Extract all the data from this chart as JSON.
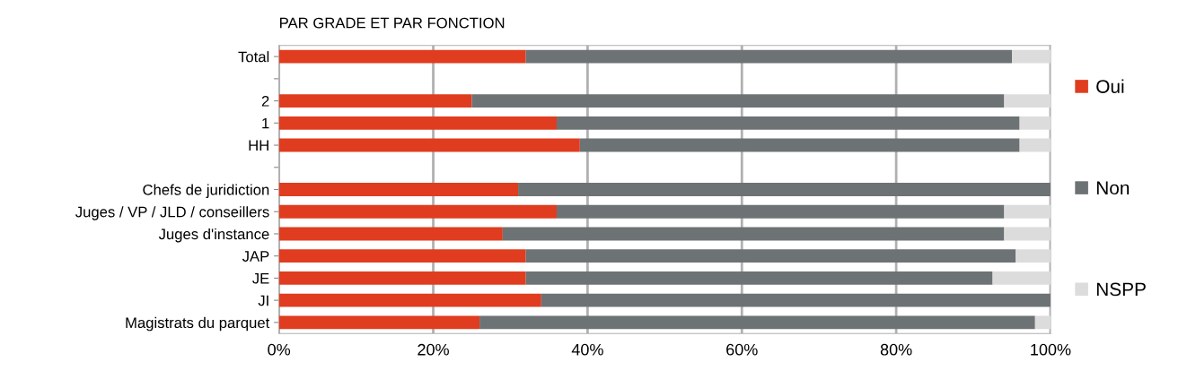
{
  "chart_data": {
    "type": "bar",
    "orientation": "horizontal",
    "stacked": true,
    "title": "PAR GRADE ET PAR FONCTION",
    "categories": [
      "Total",
      null,
      "2",
      "1",
      "HH",
      null,
      "Chefs de juridiction",
      "Juges / VP / JLD / conseillers",
      "Juges d'instance",
      "JAP",
      "JE",
      "JI",
      "Magistrats du parquet"
    ],
    "series": [
      {
        "name": "Oui",
        "color": "#e03c1f",
        "values": [
          32,
          null,
          25,
          36,
          39,
          null,
          31,
          36,
          29,
          32,
          32,
          34,
          26
        ]
      },
      {
        "name": "Non",
        "color": "#6d7275",
        "values": [
          63,
          null,
          69,
          60,
          57,
          null,
          69,
          58,
          65,
          63.5,
          60.5,
          66,
          72
        ]
      },
      {
        "name": "NSPP",
        "color": "#dcdcdc",
        "values": [
          5,
          null,
          6,
          4,
          4,
          null,
          0,
          6,
          6,
          4.5,
          7.5,
          0,
          2
        ]
      }
    ],
    "xlim": [
      0,
      100
    ],
    "xticks": [
      {
        "value": 0,
        "label": "0%"
      },
      {
        "value": 20,
        "label": "20%"
      },
      {
        "value": 40,
        "label": "40%"
      },
      {
        "value": 60,
        "label": "60%"
      },
      {
        "value": 80,
        "label": "80%"
      },
      {
        "value": 100,
        "label": "100%"
      }
    ],
    "grid": "x",
    "legend": "right"
  }
}
